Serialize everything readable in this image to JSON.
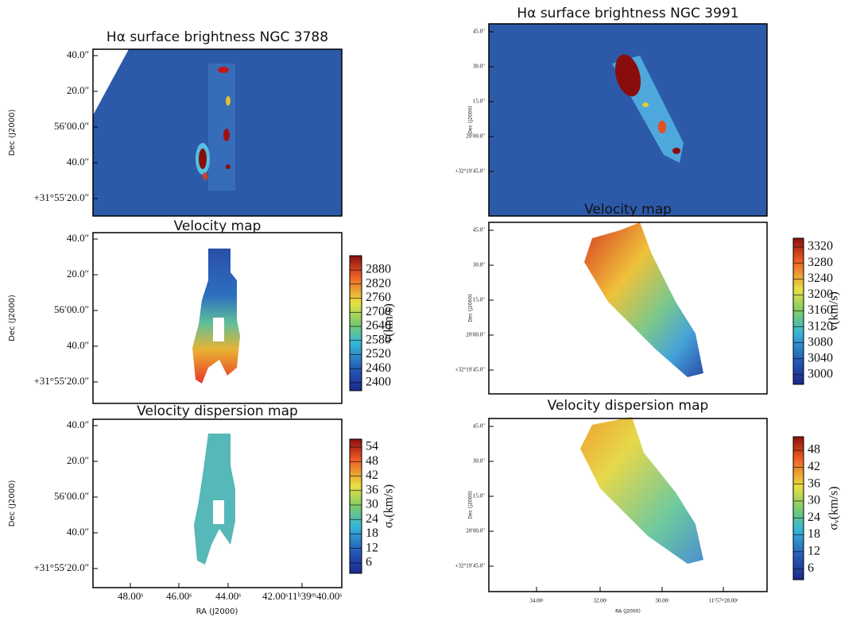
{
  "left": {
    "panels": [
      {
        "title": "Hα surface brightness NGC 3788",
        "y_label": "Dec (J2000)",
        "yticks": [
          "40.0″",
          "20.0″",
          "56′00.0″",
          "40.0″",
          "+31°55′20.0″"
        ]
      },
      {
        "title": "Velocity map",
        "y_label": "Dec (J2000)",
        "yticks": [
          "40.0″",
          "20.0″",
          "56′00.0″",
          "40.0″",
          "+31°55′20.0″"
        ],
        "colorbar": {
          "label": "v(km/s)",
          "range": [
            2366,
            2941
          ],
          "ticks": [
            2400,
            2460,
            2520,
            2580,
            2640,
            2700,
            2760,
            2820,
            2880
          ]
        }
      },
      {
        "title": "Velocity dispersion map",
        "y_label": "Dec (J2000)",
        "yticks": [
          "40.0″",
          "20.0″",
          "56′00.0″",
          "40.0″",
          "+31°55′20.0″"
        ],
        "colorbar": {
          "label": "σᵥ(km/s)",
          "range": [
            1.7,
            57.3
          ],
          "ticks": [
            6,
            12,
            18,
            24,
            30,
            36,
            42,
            48,
            54
          ]
        }
      }
    ],
    "xticks": [
      "48.00ˢ",
      "46.00ˢ",
      "44.00ˢ",
      "42.00ˢ11ʰ39ᵐ40.00ˢ"
    ],
    "x_label": "RA (J2000)"
  },
  "right": {
    "panels": [
      {
        "title": "Hα surface brightness NGC 3991",
        "y_label": "Dec (J2000)",
        "yticks": [
          "45.0″",
          "30.0″",
          "15.0″",
          "20′00.0″",
          "+32°19′45.0″"
        ]
      },
      {
        "title": "Velocity map",
        "y_label": "Dec (J2000)",
        "yticks": [
          "45.0″",
          "30.0″",
          "15.0″",
          "20′00.0″",
          "+32°19′45.0″"
        ],
        "colorbar": {
          "label": "v(km/s)",
          "range": [
            2976,
            3342
          ],
          "ticks": [
            3000,
            3040,
            3080,
            3120,
            3160,
            3200,
            3240,
            3280,
            3320
          ]
        }
      },
      {
        "title": "Velocity dispersion map",
        "y_label": "Dec (J2000)",
        "yticks": [
          "45.0″",
          "30.0″",
          "15.0″",
          "20′00.0″",
          "+32°19′45.0″"
        ],
        "colorbar": {
          "label": "σᵥ(km/s)",
          "range": [
            2.1,
            52.8
          ],
          "ticks": [
            6,
            12,
            18,
            24,
            30,
            36,
            42,
            48
          ]
        }
      }
    ],
    "xticks": [
      "34.00ˢ",
      "32.00ˢ",
      "30.00ˢ",
      "11ʰ57ᵐ28.00ˢ"
    ],
    "x_label": "RA (J2000)"
  }
}
